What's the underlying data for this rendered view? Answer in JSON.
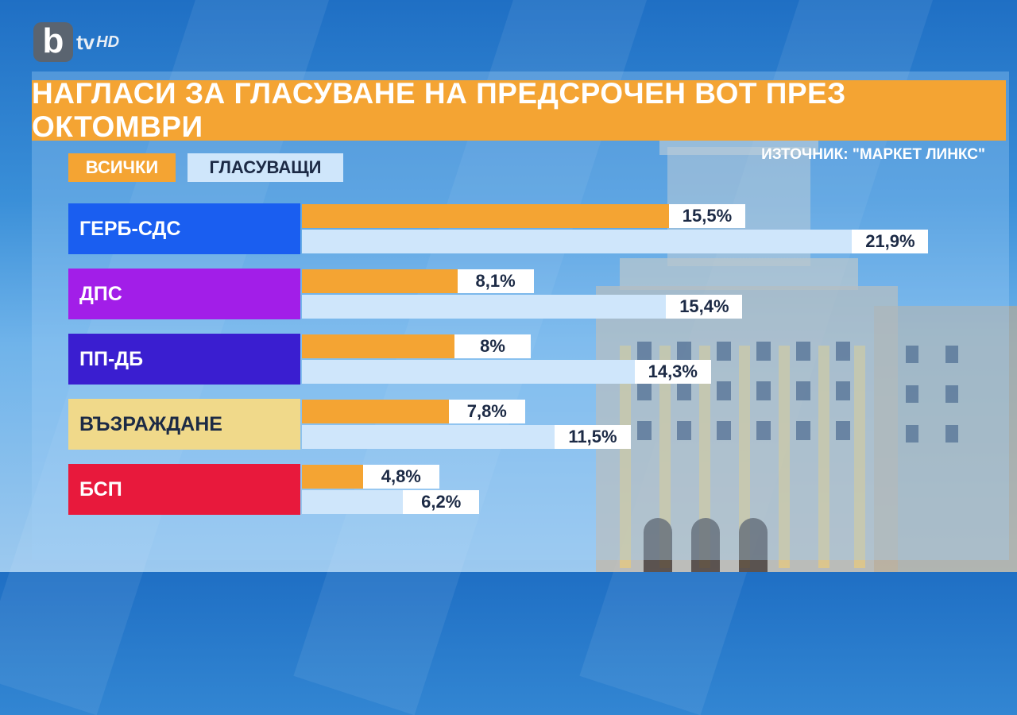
{
  "logo": {
    "letter": "b",
    "tv": "tv",
    "hd": "HD"
  },
  "title": "НАГЛАСИ ЗА ГЛАСУВАНЕ НА ПРЕДСРОЧЕН ВОТ ПРЕЗ ОКТОМВРИ",
  "source": "ИЗТОЧНИК: \"МАРКЕТ ЛИНКС\"",
  "colors": {
    "all": "#f4a433",
    "voters": "#cfe6fb",
    "title_bg": "#f4a433"
  },
  "chart_data": {
    "type": "bar",
    "orientation": "horizontal",
    "title": "НАГЛАСИ ЗА ГЛАСУВАНЕ НА ПРЕДСРОЧЕН ВОТ ПРЕЗ ОКТОМВРИ",
    "categories": [
      "ГЕРБ-СДС",
      "ДПС",
      "ПП-ДБ",
      "ВЪЗРАЖДАНЕ",
      "БСП"
    ],
    "category_colors": [
      "#1a5ef0",
      "#a21ee8",
      "#3a1ed0",
      "#f0d98a",
      "#e8193c"
    ],
    "category_text_colors": [
      "#ffffff",
      "#ffffff",
      "#ffffff",
      "#1c2a45",
      "#ffffff"
    ],
    "series": [
      {
        "name": "ВСИЧКИ",
        "values": [
          15.5,
          8.1,
          8,
          7.8,
          4.8
        ],
        "labels": [
          "15,5%",
          "8,1%",
          "8%",
          "7,8%",
          "4,8%"
        ]
      },
      {
        "name": "ГЛАСУВАЩИ",
        "values": [
          21.9,
          15.4,
          14.3,
          11.5,
          6.2
        ],
        "labels": [
          "21,9%",
          "15,4%",
          "14,3%",
          "11,5%",
          "6,2%"
        ]
      }
    ],
    "legend": "top-left",
    "grid": false
  }
}
